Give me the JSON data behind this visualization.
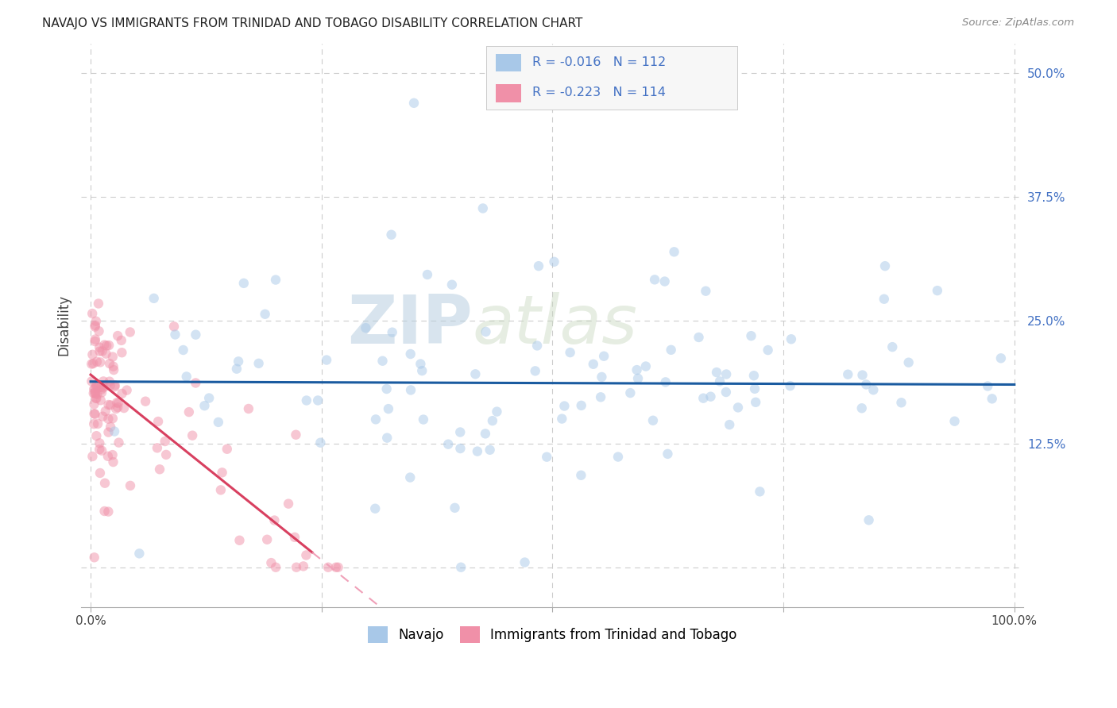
{
  "title": "NAVAJO VS IMMIGRANTS FROM TRINIDAD AND TOBAGO DISABILITY CORRELATION CHART",
  "source": "Source: ZipAtlas.com",
  "ylabel": "Disability",
  "xlim": [
    -0.01,
    1.01
  ],
  "ylim": [
    -0.04,
    0.53
  ],
  "navajo_R": -0.016,
  "navajo_N": 112,
  "tt_R": -0.223,
  "tt_N": 114,
  "navajo_color": "#a8c8e8",
  "tt_color": "#f090a8",
  "navajo_line_color": "#1a5ba0",
  "tt_line_color": "#d84060",
  "tt_line_dash_color": "#f0a0b8",
  "watermark_zip": "ZIP",
  "watermark_atlas": "atlas",
  "legend_navajo": "Navajo",
  "legend_tt": "Immigrants from Trinidad and Tobago",
  "navajo_intercept": 0.188,
  "navajo_slope": -0.003,
  "tt_intercept": 0.195,
  "tt_slope": -0.75,
  "grid_yticks": [
    0.0,
    0.125,
    0.25,
    0.375,
    0.5
  ],
  "grid_xticks": [
    0.0,
    0.25,
    0.5,
    0.75,
    1.0
  ],
  "yticklabels_right": [
    "",
    "12.5%",
    "25.0%",
    "37.5%",
    "50.0%"
  ],
  "scatter_size": 80,
  "scatter_alpha": 0.5,
  "background_color": "#ffffff",
  "grid_color": "#cccccc",
  "title_fontsize": 11,
  "axis_label_color": "#555555",
  "tick_color": "#4472c4"
}
